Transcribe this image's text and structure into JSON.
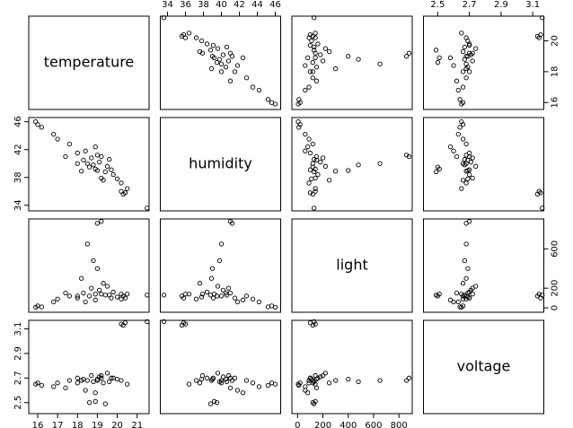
{
  "chart_data": {
    "type": "scatter_matrix",
    "variables": [
      {
        "name": "temperature",
        "lim": [
          15.55,
          21.6
        ],
        "xticks": [
          16,
          17,
          18,
          19,
          20,
          21
        ],
        "yticks": [
          16,
          18,
          20
        ],
        "values": [
          21.5,
          20.3,
          20.2,
          20.4,
          15.9,
          16.0,
          16.2,
          16.8,
          17.0,
          17.6,
          18.0,
          18.3,
          18.5,
          18.8,
          19.0,
          19.0,
          19.2,
          18.6,
          18.9,
          19.4,
          18.7,
          19.1,
          19.5,
          19.8,
          20.0,
          20.2,
          19.3,
          18.4,
          18.9,
          19.6,
          20.5,
          17.4,
          18.2,
          19.7,
          18.0,
          19.2
        ]
      },
      {
        "name": "humidity",
        "lim": [
          33.2,
          46.6
        ],
        "xticks": [
          34,
          36,
          38,
          40,
          42,
          44,
          46
        ],
        "yticks": [
          34,
          38,
          42,
          46
        ],
        "values": [
          33.6,
          35.6,
          36.0,
          35.8,
          46.0,
          45.6,
          45.2,
          44.2,
          43.5,
          42.8,
          41.5,
          40.5,
          40.0,
          39.8,
          39.0,
          41.2,
          41.0,
          39.5,
          39.2,
          38.8,
          40.8,
          40.2,
          39.6,
          38.4,
          37.8,
          37.2,
          37.6,
          41.8,
          42.4,
          40.6,
          36.4,
          41.0,
          38.9,
          39.1,
          40.0,
          37.9
        ]
      },
      {
        "name": "light",
        "lim": [
          -45,
          905
        ],
        "xticks": [
          0,
          200,
          400,
          600,
          800
        ],
        "yticks": [
          0,
          200,
          600
        ],
        "values": [
          130,
          120,
          140,
          100,
          5,
          20,
          10,
          60,
          90,
          120,
          100,
          150,
          650,
          480,
          400,
          860,
          880,
          120,
          140,
          130,
          200,
          180,
          220,
          160,
          110,
          90,
          250,
          60,
          80,
          130,
          140,
          150,
          300,
          100,
          120,
          140
        ]
      },
      {
        "name": "voltage",
        "lim": [
          2.41,
          3.17
        ],
        "xticks": [
          2.5,
          2.7,
          2.9,
          3.1
        ],
        "yticks": [
          2.5,
          2.7,
          2.9,
          3.1
        ],
        "values": [
          3.16,
          3.13,
          3.14,
          3.15,
          2.65,
          2.66,
          2.64,
          2.63,
          2.66,
          2.68,
          2.7,
          2.69,
          2.68,
          2.67,
          2.69,
          2.68,
          2.7,
          2.5,
          2.51,
          2.49,
          2.72,
          2.71,
          2.74,
          2.7,
          2.69,
          2.68,
          2.66,
          2.6,
          2.58,
          2.67,
          2.65,
          2.62,
          2.68,
          2.7,
          2.66,
          2.72
        ]
      }
    ]
  }
}
